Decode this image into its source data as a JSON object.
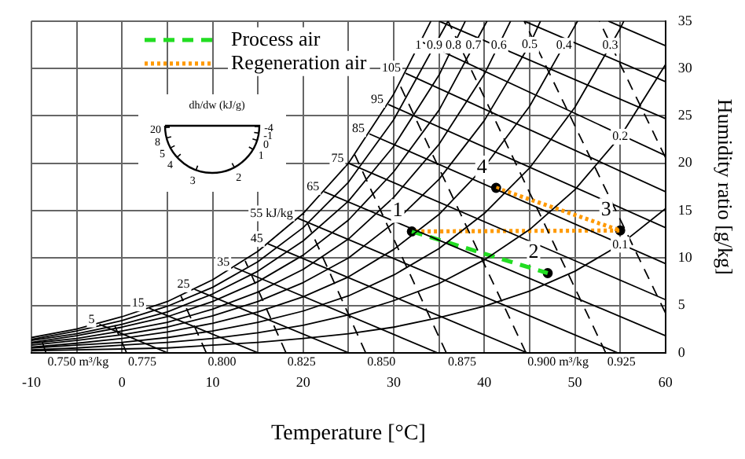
{
  "chart_data": {
    "type": "line",
    "xlabel": "Temperature [°C]",
    "ylabel": "Humidity ratio [g/kg]",
    "xlim": [
      -10,
      60
    ],
    "ylim": [
      0,
      35
    ],
    "xticks": [
      -10,
      {
        "value": -5,
        "label": null
      },
      0,
      {
        "value": 5,
        "label": null
      },
      10,
      {
        "value": 15,
        "label": null
      },
      20,
      {
        "value": 25,
        "label": null
      },
      30,
      {
        "value": 35,
        "label": null
      },
      40,
      {
        "value": 45,
        "label": null
      },
      50,
      {
        "value": 55,
        "label": null
      },
      60
    ],
    "yticks": [
      0,
      5,
      10,
      15,
      20,
      25,
      30,
      35
    ],
    "grid": true,
    "legend": "top left",
    "tick_labels": "xy",
    "series": [
      {
        "type": "line",
        "color": "#000000",
        "line_style": "solid",
        "x": [
          -10,
          -5,
          0,
          5,
          10,
          15,
          20,
          25,
          30,
          34.1
        ],
        "values": [
          1.6,
          2.5,
          3.8,
          5.4,
          7.7,
          10.7,
          14.7,
          20.0,
          27.3,
          35
        ]
      },
      {
        "type": "line",
        "color": "#000000",
        "line_style": "solid",
        "x": [
          -10,
          -5,
          0,
          5,
          10,
          15,
          20,
          25,
          30,
          36
        ],
        "values": [
          1.4,
          2.3,
          3.4,
          4.9,
          6.9,
          9.6,
          13.2,
          18.0,
          24.6,
          35
        ]
      },
      {
        "type": "line",
        "color": "#000000",
        "line_style": "solid",
        "x": [
          -10,
          -5,
          0,
          5,
          10,
          15,
          20,
          25,
          30,
          35,
          37.9
        ],
        "values": [
          1.3,
          2.0,
          3.0,
          4.3,
          6.2,
          8.6,
          11.8,
          16.0,
          21.8,
          29.3,
          35
        ]
      },
      {
        "type": "line",
        "color": "#000000",
        "line_style": "solid",
        "x": [
          -10,
          -5,
          0,
          5,
          10,
          15,
          20,
          25,
          30,
          35,
          40.3
        ],
        "values": [
          1.1,
          1.8,
          2.7,
          3.8,
          5.4,
          7.5,
          10.3,
          14.0,
          19.1,
          25.6,
          35
        ]
      },
      {
        "type": "line",
        "color": "#000000",
        "line_style": "solid",
        "x": [
          -10,
          -5,
          0,
          5,
          10,
          15,
          20,
          25,
          30,
          35,
          40,
          42.9
        ],
        "values": [
          1.0,
          1.5,
          2.3,
          3.2,
          4.6,
          6.4,
          8.8,
          12.0,
          16.4,
          22.0,
          29.4,
          35
        ]
      },
      {
        "type": "line",
        "color": "#000000",
        "line_style": "solid",
        "x": [
          -10,
          -5,
          0,
          5,
          10,
          15,
          20,
          25,
          30,
          35,
          40,
          45,
          46.2
        ],
        "values": [
          0.8,
          1.3,
          1.9,
          2.7,
          3.9,
          5.4,
          7.4,
          10.0,
          13.7,
          18.3,
          24.5,
          32.5,
          35
        ]
      },
      {
        "type": "line",
        "color": "#000000",
        "line_style": "solid",
        "x": [
          -10,
          -5,
          0,
          5,
          10,
          15,
          20,
          25,
          30,
          35,
          40,
          45,
          50,
          50.3
        ],
        "values": [
          0.6,
          1.0,
          1.5,
          2.2,
          3.1,
          4.3,
          5.9,
          8.0,
          10.9,
          14.6,
          19.6,
          26.0,
          34.5,
          35
        ]
      },
      {
        "type": "line",
        "color": "#000000",
        "line_style": "solid",
        "x": [
          -10,
          -5,
          0,
          5,
          10,
          15,
          20,
          25,
          30,
          35,
          40,
          45,
          50,
          55,
          55.4
        ],
        "values": [
          0.5,
          0.8,
          1.1,
          1.6,
          2.3,
          3.2,
          4.4,
          6.0,
          8.2,
          11.0,
          14.7,
          19.5,
          25.9,
          34.2,
          35
        ]
      },
      {
        "type": "line",
        "color": "#000000",
        "line_style": "solid",
        "x": [
          -10,
          -5,
          0,
          5,
          10,
          15,
          20,
          25,
          30,
          35,
          40,
          45,
          50,
          55,
          60
        ],
        "values": [
          0.3,
          0.5,
          0.8,
          1.1,
          1.5,
          2.1,
          2.9,
          4.0,
          5.5,
          7.3,
          9.8,
          13.0,
          17.2,
          22.8,
          30.4
        ]
      },
      {
        "type": "line",
        "color": "#000000",
        "line_style": "solid",
        "x": [
          -10,
          -5,
          0,
          5,
          10,
          15,
          20,
          25,
          30,
          35,
          40,
          45,
          50,
          55,
          60
        ],
        "values": [
          0.2,
          0.3,
          0.4,
          0.5,
          0.8,
          1.1,
          1.5,
          2.0,
          2.7,
          3.7,
          4.9,
          6.5,
          8.6,
          11.4,
          15.2
        ]
      },
      {
        "type": "line",
        "color": "#000000",
        "line_style": "solid",
        "x": [
          -2.5,
          5
        ],
        "values": [
          3.0,
          0
        ]
      },
      {
        "type": "line",
        "color": "#000000",
        "line_style": "solid",
        "x": [
          3,
          15
        ],
        "values": [
          4.7,
          0
        ]
      },
      {
        "type": "line",
        "color": "#000000",
        "line_style": "solid",
        "x": [
          8,
          25
        ],
        "values": [
          6.7,
          0
        ]
      },
      {
        "type": "line",
        "color": "#000000",
        "line_style": "solid",
        "x": [
          12.4,
          34.8
        ],
        "values": [
          9.0,
          0
        ]
      },
      {
        "type": "line",
        "color": "#000000",
        "line_style": "solid",
        "x": [
          16.1,
          44.7
        ],
        "values": [
          11.5,
          0
        ]
      },
      {
        "type": "line",
        "color": "#000000",
        "line_style": "solid",
        "x": [
          19.4,
          54.7
        ],
        "values": [
          14.2,
          0
        ]
      },
      {
        "type": "line",
        "color": "#000000",
        "line_style": "solid",
        "x": [
          22.3,
          60
        ],
        "values": [
          17.0,
          1.8
        ]
      },
      {
        "type": "line",
        "color": "#000000",
        "line_style": "solid",
        "x": [
          25,
          60
        ],
        "values": [
          20.0,
          5.6
        ]
      },
      {
        "type": "line",
        "color": "#000000",
        "line_style": "solid",
        "x": [
          27.3,
          60
        ],
        "values": [
          23.1,
          9.4
        ]
      },
      {
        "type": "line",
        "color": "#000000",
        "line_style": "solid",
        "x": [
          29.4,
          60
        ],
        "values": [
          26.2,
          13.2
        ]
      },
      {
        "type": "line",
        "color": "#000000",
        "line_style": "solid",
        "x": [
          31.3,
          60
        ],
        "values": [
          29.5,
          17.0
        ]
      },
      {
        "type": "line",
        "color": "#000000",
        "line_style": "solid",
        "x": [
          33.1,
          60
        ],
        "values": [
          32.8,
          20.8
        ]
      },
      {
        "type": "line",
        "color": "#000000",
        "line_style": "solid",
        "x": [
          35,
          60
        ],
        "values": [
          35,
          24.7
        ]
      },
      {
        "type": "line",
        "color": "#000000",
        "line_style": "solid",
        "x": [
          44.4,
          60
        ],
        "values": [
          35,
          28.6
        ]
      },
      {
        "type": "line",
        "color": "#000000",
        "line_style": "solid",
        "x": [
          53.7,
          60
        ],
        "values": [
          35,
          32.4
        ]
      },
      {
        "type": "line",
        "color": "#000000",
        "line_style": "dashed",
        "x": [
          -8.4,
          -9
        ],
        "values": [
          0,
          1.7
        ]
      },
      {
        "type": "line",
        "color": "#000000",
        "line_style": "dashed",
        "x": [
          0.5,
          -1.1
        ],
        "values": [
          0,
          3.5
        ]
      },
      {
        "type": "line",
        "color": "#000000",
        "line_style": "dashed",
        "x": [
          9.3,
          6.5
        ],
        "values": [
          0,
          6.0
        ]
      },
      {
        "type": "line",
        "color": "#000000",
        "line_style": "dashed",
        "x": [
          18.1,
          13.6
        ],
        "values": [
          0,
          9.7
        ]
      },
      {
        "type": "line",
        "color": "#000000",
        "line_style": "dashed",
        "x": [
          26.9,
          20
        ],
        "values": [
          0,
          14.7
        ]
      },
      {
        "type": "line",
        "color": "#000000",
        "line_style": "dashed",
        "x": [
          35.8,
          25.7
        ],
        "values": [
          0,
          20.9
        ]
      },
      {
        "type": "line",
        "color": "#000000",
        "line_style": "dashed",
        "x": [
          44.6,
          30.6
        ],
        "values": [
          0,
          28.4
        ]
      },
      {
        "type": "line",
        "color": "#000000",
        "line_style": "dashed",
        "x": [
          53.4,
          36
        ],
        "values": [
          0,
          35
        ]
      },
      {
        "type": "line",
        "color": "#000000",
        "line_style": "dashed",
        "x": [
          60,
          44.4
        ],
        "values": [
          4.2,
          35
        ]
      },
      {
        "type": "line",
        "color": "#000000",
        "line_style": "dashed",
        "x": [
          60,
          52.7
        ],
        "values": [
          20.6,
          35
        ]
      },
      {
        "type": "line",
        "name": "Process air",
        "color": "#22dd22",
        "line_style": "dashed",
        "x": [
          32,
          47
        ],
        "values": [
          12.8,
          8.4
        ]
      },
      {
        "type": "line",
        "name": "Regeneration air",
        "color": "#ff9900",
        "line_style": "dotted",
        "x": [
          41.3,
          55,
          32
        ],
        "values": [
          17.4,
          12.9,
          12.8
        ]
      },
      {
        "type": "scatter",
        "color": "#000000",
        "marker": "circle",
        "x": [
          32,
          47,
          55,
          41.3
        ],
        "values": [
          12.8,
          8.4,
          12.9,
          17.4
        ]
      }
    ],
    "annotations": [
      "dh/dw (kJ/g)",
      "20",
      "8",
      "5",
      "4",
      "3",
      "2",
      "1",
      "0",
      "-1",
      "-4",
      {
        "text": "1",
        "x": 32,
        "y": 12.8
      },
      {
        "text": "2",
        "x": 47,
        "y": 8.4
      },
      {
        "text": "3",
        "x": 55,
        "y": 12.9
      },
      {
        "text": "4",
        "x": 41.3,
        "y": 17.4
      },
      {
        "text": "1",
        "x": 32.7,
        "y": 32.4
      },
      {
        "text": "0.9",
        "x": 34.5,
        "y": 32.4
      },
      {
        "text": "0.8",
        "x": 36.6,
        "y": 32.4
      },
      {
        "text": "0.7",
        "x": 38.8,
        "y": 32.4
      },
      {
        "text": "0.6",
        "x": 41.6,
        "y": 32.4
      },
      {
        "text": "0.5",
        "x": 45,
        "y": 32.5
      },
      {
        "text": "0.4",
        "x": 48.8,
        "y": 32.4
      },
      {
        "text": "0.3",
        "x": 53.9,
        "y": 32.4
      },
      {
        "text": "0.2",
        "x": 55,
        "y": 22.8
      },
      {
        "text": "0.1",
        "x": 55,
        "y": 11.4
      },
      {
        "text": "5",
        "x": -2.5,
        "y": 3.0
      },
      {
        "text": "15",
        "x": 3,
        "y": 4.7
      },
      {
        "text": "25",
        "x": 8,
        "y": 6.7
      },
      {
        "text": "35",
        "x": 12.4,
        "y": 9.0
      },
      {
        "text": "45",
        "x": 16.1,
        "y": 11.5
      },
      {
        "text": "55 kJ/kg",
        "x": 19.4,
        "y": 14.2
      },
      {
        "text": "65",
        "x": 22.3,
        "y": 17.0
      },
      {
        "text": "75",
        "x": 25,
        "y": 20.0
      },
      {
        "text": "85",
        "x": 27.3,
        "y": 23.1
      },
      {
        "text": "95",
        "x": 29.4,
        "y": 26.2
      },
      {
        "text": "105",
        "x": 31.3,
        "y": 29.5
      },
      {
        "text": "0.750 m³/kg",
        "x": -8.4,
        "y": 0
      },
      {
        "text": "0.775",
        "x": 0.5,
        "y": 0
      },
      {
        "text": "0.800",
        "x": 9.3,
        "y": 0
      },
      {
        "text": "0.825",
        "x": 18.1,
        "y": 0
      },
      {
        "text": "0.850",
        "x": 26.9,
        "y": 0
      },
      {
        "text": "0.875",
        "x": 35.8,
        "y": 0
      },
      {
        "text": "0.900 m³/kg",
        "x": 44.6,
        "y": 0
      },
      {
        "text": "0.925",
        "x": 53.4,
        "y": 0
      }
    ]
  }
}
